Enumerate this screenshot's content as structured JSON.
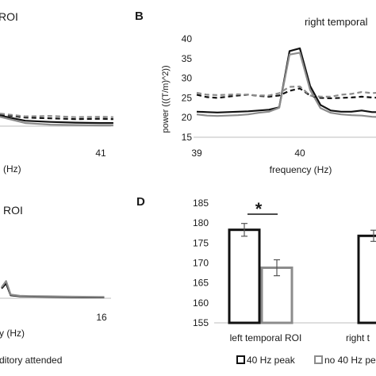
{
  "panels": {
    "a": {
      "title": "ROI",
      "xlabel": "(Hz)",
      "xticks": [
        "41"
      ]
    },
    "b": {
      "letter": "B",
      "title": "right temporal",
      "ylabel": "power (((T/m)^2))",
      "xlabel": "frequency (Hz)",
      "yticks": [
        "40",
        "35",
        "30",
        "25",
        "20",
        "15"
      ],
      "xticks": [
        "39",
        "40"
      ]
    },
    "c": {
      "title": "l ROI",
      "xlabel": "y (Hz)",
      "xticks": [
        "16"
      ]
    },
    "d": {
      "letter": "D",
      "significance": "*",
      "yticks": [
        "185",
        "180",
        "175",
        "170",
        "165",
        "160",
        "155"
      ],
      "categories": [
        "left temporal ROI",
        "right t"
      ]
    }
  },
  "bottom_legend": {
    "left_text": "ditory attended",
    "items": [
      "40 Hz peak",
      "no 40 Hz pe"
    ]
  },
  "colors": {
    "black": "#111111",
    "gray": "#8c8c8c",
    "light_gray": "#a0a0a0"
  },
  "chart_data": [
    {
      "panel": "A",
      "type": "line",
      "x": [
        40.6,
        40.7,
        40.8,
        40.9,
        41.0,
        41.05
      ],
      "series": [
        {
          "style": "solid-black",
          "values": [
            20.5,
            19.2,
            18.9,
            18.7,
            18.6,
            18.6
          ]
        },
        {
          "style": "solid-gray",
          "values": [
            20.2,
            18.6,
            18.2,
            18.1,
            18.0,
            18.0
          ]
        },
        {
          "style": "dashed-black",
          "values": [
            20.8,
            20.0,
            19.8,
            19.6,
            19.7,
            19.6
          ]
        },
        {
          "style": "dashed-gray",
          "values": [
            21.0,
            20.3,
            20.4,
            20.1,
            20.2,
            20.1
          ]
        }
      ],
      "xlabel": "(Hz)"
    },
    {
      "panel": "B",
      "type": "line",
      "title": "right temporal",
      "xlabel": "frequency (Hz)",
      "ylabel": "power (((T/m)^2))",
      "ylim": [
        15,
        40
      ],
      "xlim": [
        39,
        40.8
      ],
      "x": [
        39.0,
        39.1,
        39.2,
        39.3,
        39.4,
        39.5,
        39.6,
        39.7,
        39.8,
        39.9,
        40.0,
        40.1,
        40.2,
        40.3,
        40.4,
        40.5,
        40.6,
        40.7,
        40.8
      ],
      "series": [
        {
          "style": "solid-black",
          "values": [
            21.5,
            21.4,
            21.3,
            21.4,
            21.5,
            21.6,
            21.8,
            22.0,
            22.6,
            36.9,
            37.6,
            28.0,
            23.2,
            21.8,
            21.5,
            21.5,
            21.8,
            21.4,
            21.4
          ]
        },
        {
          "style": "solid-gray",
          "values": [
            20.8,
            20.5,
            20.4,
            20.5,
            20.6,
            20.8,
            21.2,
            21.5,
            22.5,
            36.0,
            36.5,
            27.0,
            22.4,
            21.2,
            20.8,
            20.6,
            20.5,
            20.2,
            20.1
          ]
        },
        {
          "style": "dashed-black",
          "values": [
            25.8,
            25.2,
            25.0,
            25.3,
            25.6,
            25.8,
            25.5,
            25.3,
            25.6,
            26.8,
            27.4,
            25.6,
            25.0,
            24.9,
            25.0,
            25.1,
            25.3,
            25.1,
            25.0
          ]
        },
        {
          "style": "dashed-gray",
          "values": [
            26.3,
            25.8,
            25.7,
            25.8,
            25.9,
            25.8,
            25.6,
            25.6,
            26.2,
            27.8,
            27.9,
            25.6,
            25.3,
            25.3,
            25.8,
            26.0,
            26.5,
            26.2,
            26.4
          ]
        }
      ]
    },
    {
      "panel": "C",
      "type": "line",
      "x": [
        5.0,
        5.5,
        6.0,
        7.0,
        8.0,
        10.0,
        12.0,
        14.0,
        16.0,
        16.3
      ],
      "series": [
        {
          "style": "solid-black",
          "values": [
            4.0,
            6.0,
            1.2,
            0.8,
            0.7,
            0.6,
            0.5,
            0.4,
            0.35,
            0.35
          ]
        },
        {
          "style": "solid-gray",
          "values": [
            4.5,
            7.0,
            1.5,
            1.0,
            0.9,
            0.8,
            0.7,
            0.6,
            0.5,
            0.5
          ]
        }
      ],
      "xlabel": "y (Hz)"
    },
    {
      "panel": "D",
      "type": "bar",
      "ylim": [
        155,
        185
      ],
      "categories": [
        "left temporal ROI",
        "right t"
      ],
      "series": [
        {
          "name": "40 Hz peak",
          "values": [
            178.3,
            176.8
          ],
          "errors": [
            1.6,
            1.4
          ]
        },
        {
          "name": "no 40 Hz pe",
          "values": [
            168.8,
            null
          ],
          "errors": [
            2.0,
            null
          ]
        }
      ]
    }
  ]
}
